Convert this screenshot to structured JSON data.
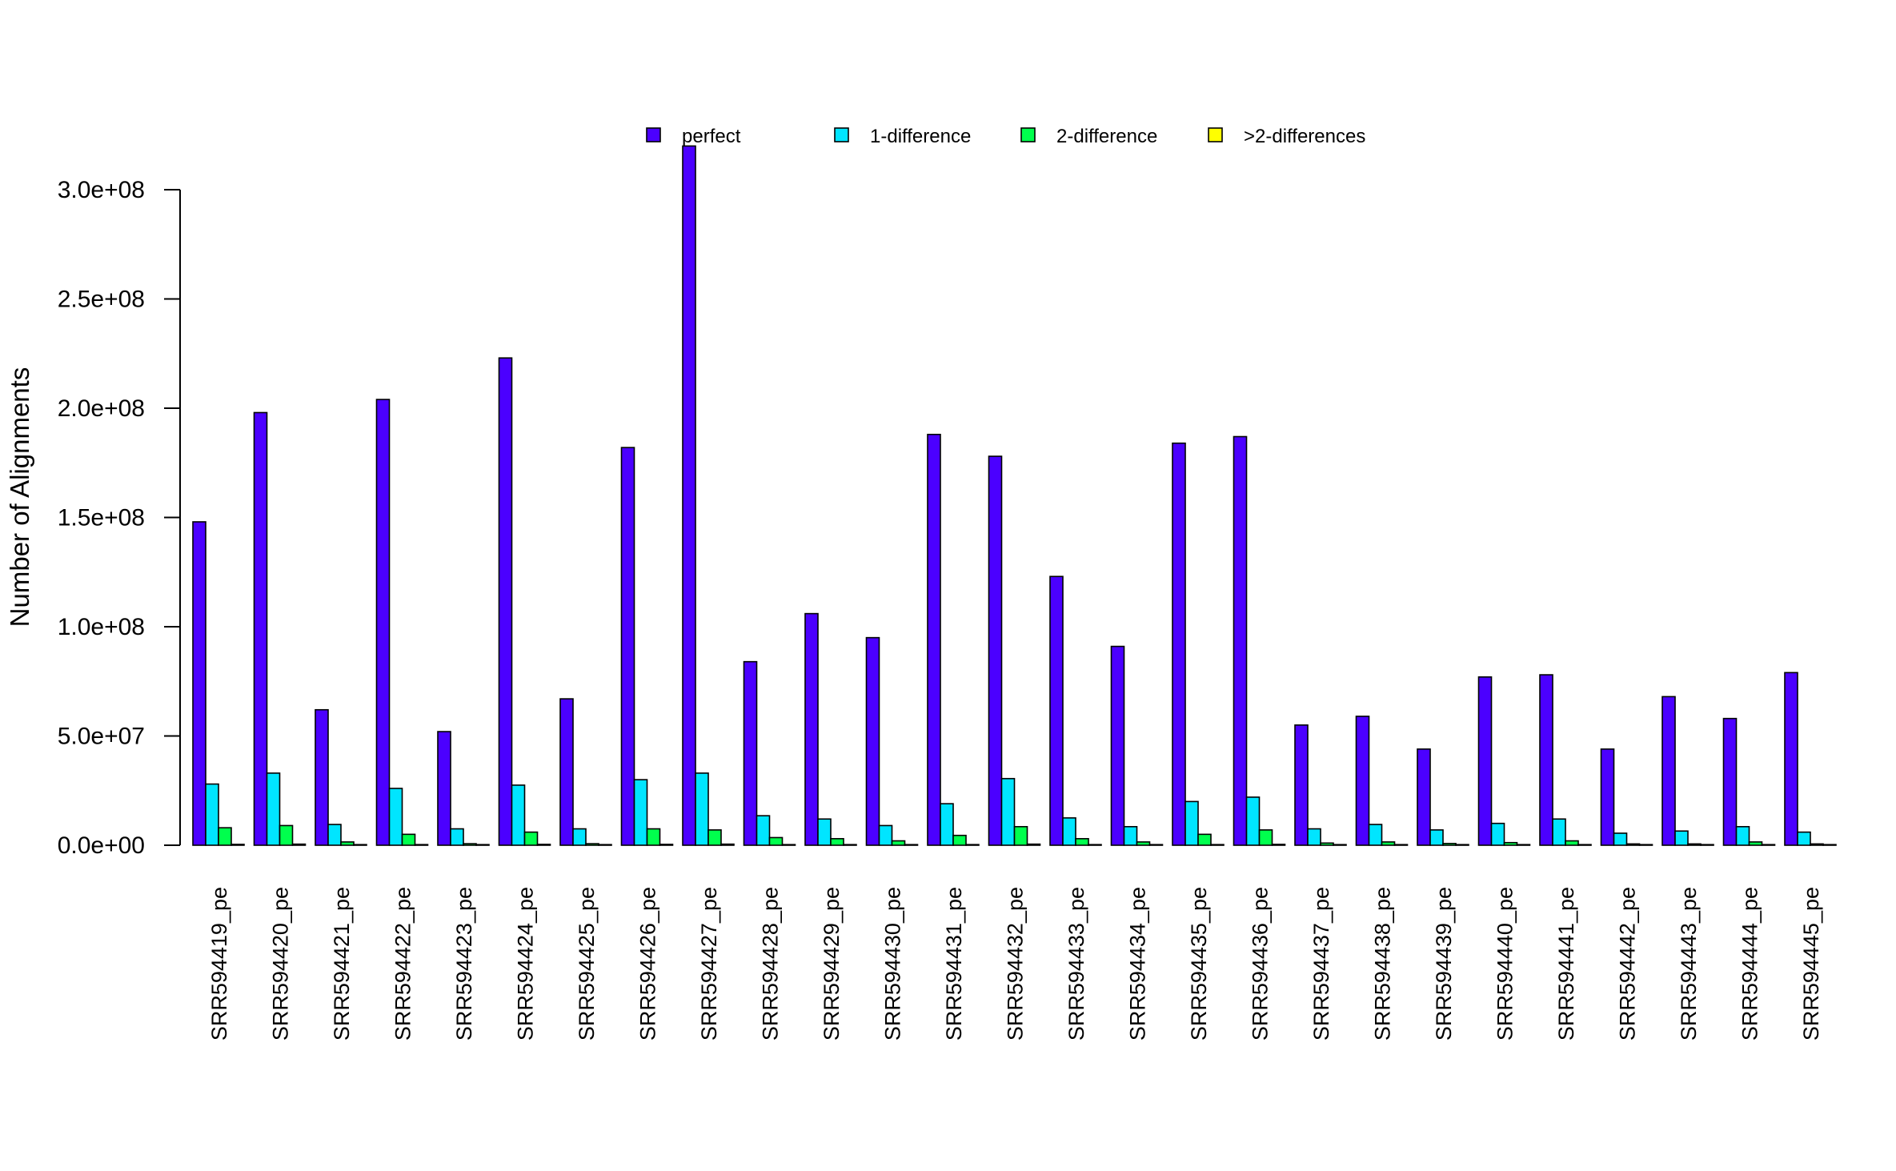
{
  "chart_data": {
    "type": "bar",
    "title": "",
    "xlabel": "",
    "ylabel": "Number of Alignments",
    "ylim": [
      0,
      320000000
    ],
    "yticks": [
      0,
      50000000,
      100000000,
      150000000,
      200000000,
      250000000,
      300000000
    ],
    "ytick_labels": [
      "0.0e+00",
      "5.0e+07",
      "1.0e+08",
      "1.5e+08",
      "2.0e+08",
      "2.5e+08",
      "3.0e+08"
    ],
    "legend_position": "top",
    "grid": false,
    "categories": [
      "SRR594419_pe",
      "SRR594420_pe",
      "SRR594421_pe",
      "SRR594422_pe",
      "SRR594423_pe",
      "SRR594424_pe",
      "SRR594425_pe",
      "SRR594426_pe",
      "SRR594427_pe",
      "SRR594428_pe",
      "SRR594429_pe",
      "SRR594430_pe",
      "SRR594431_pe",
      "SRR594432_pe",
      "SRR594433_pe",
      "SRR594434_pe",
      "SRR594435_pe",
      "SRR594436_pe",
      "SRR594437_pe",
      "SRR594438_pe",
      "SRR594439_pe",
      "SRR594440_pe",
      "SRR594441_pe",
      "SRR594442_pe",
      "SRR594443_pe",
      "SRR594444_pe",
      "SRR594445_pe"
    ],
    "series": [
      {
        "name": "perfect",
        "color": "#4b00ff",
        "values": [
          148000000,
          198000000,
          62000000,
          204000000,
          52000000,
          223000000,
          67000000,
          182000000,
          320000000,
          84000000,
          106000000,
          95000000,
          188000000,
          178000000,
          123000000,
          91000000,
          184000000,
          187000000,
          55000000,
          59000000,
          44000000,
          77000000,
          78000000,
          44000000,
          68000000,
          58000000,
          79000000
        ]
      },
      {
        "name": "1-difference",
        "color": "#00e5ff",
        "values": [
          28000000,
          33000000,
          9500000,
          26000000,
          7500000,
          27500000,
          7500000,
          30000000,
          33000000,
          13500000,
          12000000,
          9000000,
          19000000,
          30500000,
          12500000,
          8500000,
          20000000,
          22000000,
          7500000,
          9500000,
          7000000,
          10000000,
          12000000,
          5500000,
          6500000,
          8500000,
          6000000
        ]
      },
      {
        "name": "2-difference",
        "color": "#00ff4d",
        "values": [
          8000000,
          9000000,
          1500000,
          5000000,
          700000,
          6000000,
          700000,
          7500000,
          7000000,
          3500000,
          3000000,
          2000000,
          4500000,
          8500000,
          3000000,
          1500000,
          5000000,
          7000000,
          1000000,
          1500000,
          800000,
          1200000,
          2000000,
          600000,
          600000,
          1500000,
          600000
        ]
      },
      {
        "name": ">2-differences",
        "color": "#ffff00",
        "values": [
          400000,
          500000,
          100000,
          300000,
          100000,
          400000,
          100000,
          400000,
          500000,
          200000,
          200000,
          150000,
          300000,
          500000,
          200000,
          100000,
          300000,
          400000,
          100000,
          100000,
          100000,
          100000,
          150000,
          100000,
          100000,
          100000,
          100000
        ]
      }
    ]
  }
}
